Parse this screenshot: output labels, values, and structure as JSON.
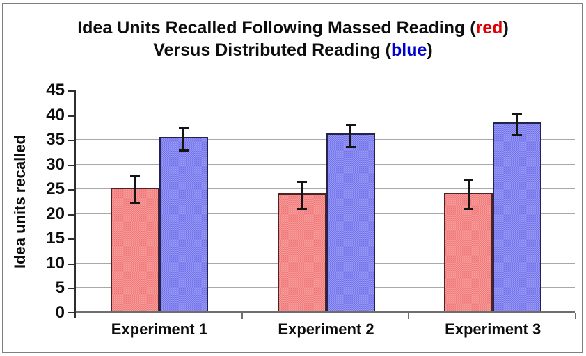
{
  "title": {
    "line1_prefix": "Idea Units Recalled Following Massed Reading (",
    "line1_colored": "red",
    "line1_suffix": ")",
    "line2_prefix": "Versus Distributed Reading (",
    "line2_colored": "blue",
    "line2_suffix": ")"
  },
  "colors": {
    "title_red": "#dd0000",
    "title_blue": "#0000cc",
    "frame_border": "#7f7f7f",
    "gridline": "#a9a9a9",
    "y_axis": "#2e2e2e",
    "x_axis": "#6e6e6e",
    "error_bar": "#141414",
    "massed_fill_light": "#fa9e9e",
    "massed_fill_dark": "#ee7878",
    "massed_border": "#4d2323",
    "distributed_fill_light": "#9b9bf8",
    "distributed_fill_dark": "#7272e8",
    "distributed_border": "#23234d"
  },
  "chart_data": {
    "type": "bar",
    "categories": [
      "Experiment 1",
      "Experiment 2",
      "Experiment 3"
    ],
    "series": [
      {
        "name": "Massed Reading (red)",
        "values": [
          24.9,
          23.8,
          23.9
        ],
        "errors": [
          2.8,
          2.8,
          2.9
        ],
        "fill_light": "#fa9e9e",
        "fill_dark": "#ee7878",
        "border": "#4d2323"
      },
      {
        "name": "Distributed Reading (blue)",
        "values": [
          35.1,
          35.8,
          38.1
        ],
        "errors": [
          2.4,
          2.3,
          2.2
        ],
        "fill_light": "#9b9bf8",
        "fill_dark": "#7272e8",
        "border": "#23234d"
      }
    ],
    "title": "Idea Units Recalled Following Massed Reading (red) Versus Distributed Reading (blue)",
    "xlabel": "",
    "ylabel": "Idea units recalled",
    "ylim": [
      0,
      45
    ],
    "yticks": [
      0,
      5,
      10,
      15,
      20,
      25,
      30,
      35,
      40,
      45
    ],
    "grid": true,
    "legend": "none (series identified by color words in title)",
    "error_bars": true
  }
}
